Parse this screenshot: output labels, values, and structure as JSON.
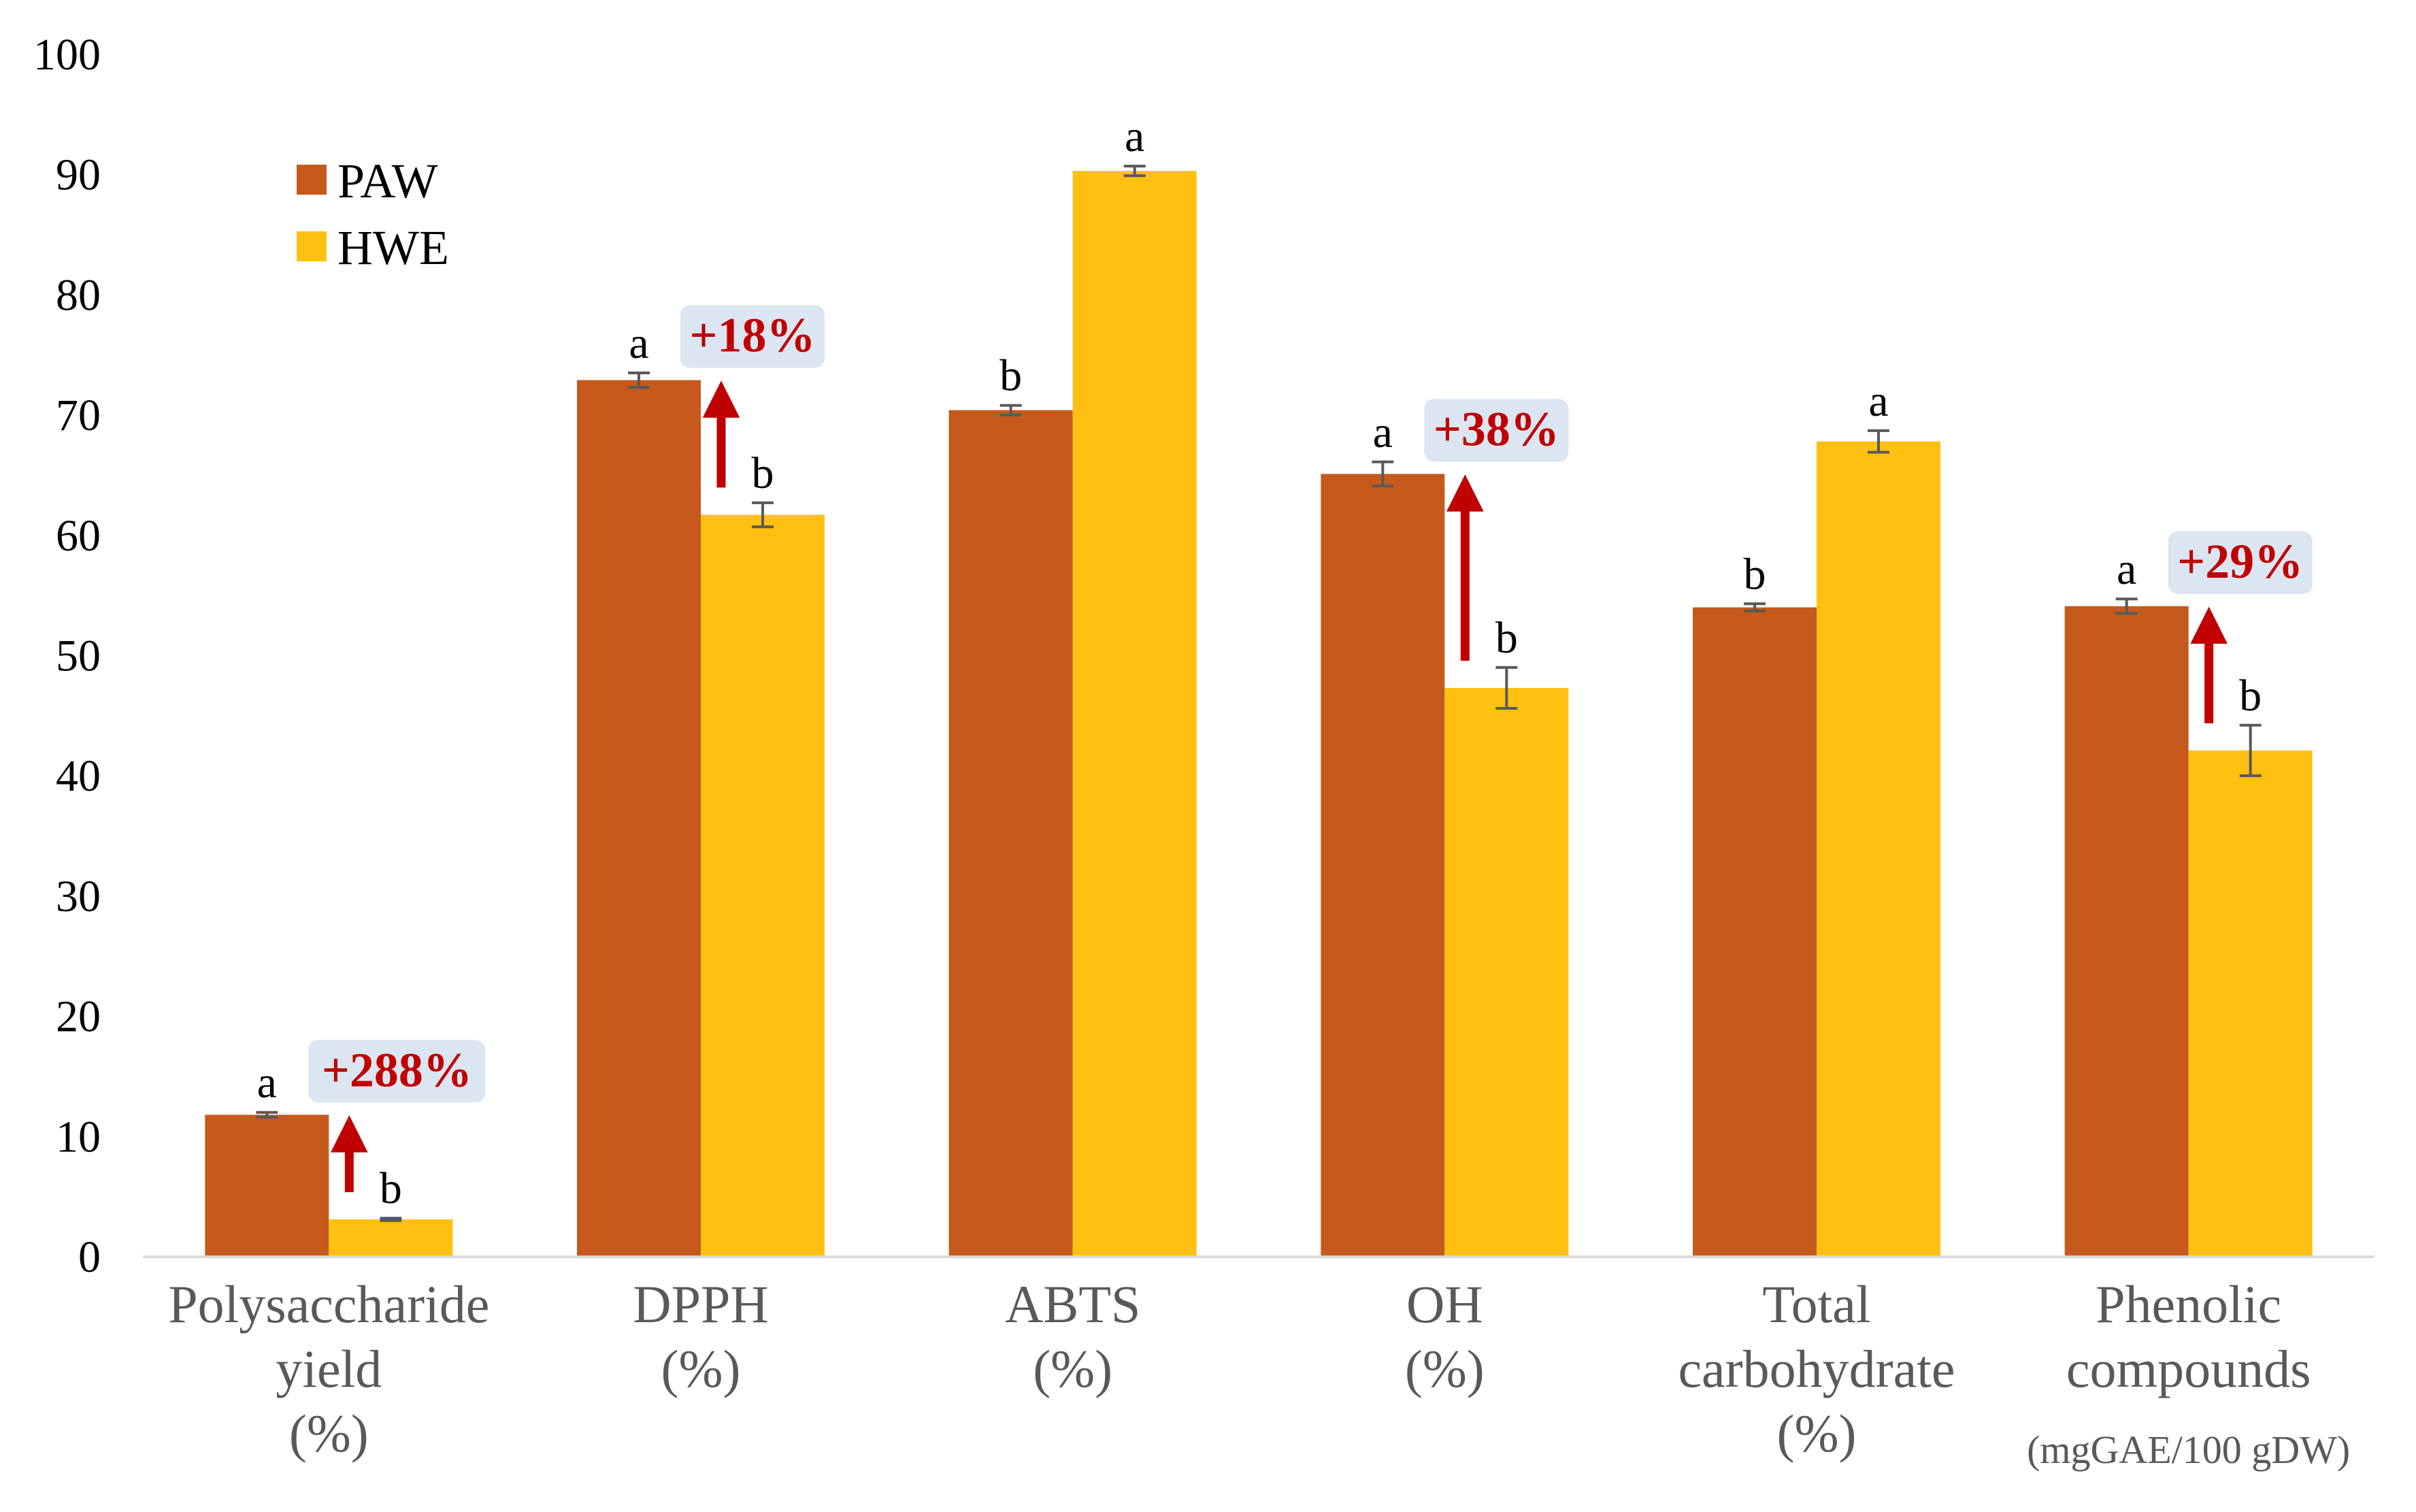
{
  "chart_data": {
    "type": "bar",
    "title": "",
    "xlabel": "",
    "ylabel": "",
    "ylim": [
      0,
      100
    ],
    "yticks": [
      0,
      10,
      20,
      30,
      40,
      50,
      60,
      70,
      80,
      90,
      100
    ],
    "grid": false,
    "legend_position": "top-left",
    "categories": [
      {
        "lines": [
          "Polysaccharide",
          "yield",
          "(%)"
        ]
      },
      {
        "lines": [
          "DPPH",
          "(%)"
        ]
      },
      {
        "lines": [
          "ABTS",
          "(%)"
        ]
      },
      {
        "lines": [
          "OH",
          "(%)"
        ]
      },
      {
        "lines": [
          "Total",
          "carbohydrate",
          "(%)"
        ]
      },
      {
        "lines": [
          "Phenolic",
          "compounds",
          "(mgGAE/100 gDW)"
        ]
      }
    ],
    "series": [
      {
        "name": "PAW",
        "color": "#c55a1c",
        "values": [
          11.7,
          72.8,
          70.3,
          65.0,
          53.9,
          54.0
        ],
        "errors": [
          0.2,
          0.6,
          0.4,
          1.0,
          0.3,
          0.6
        ],
        "letters": [
          "a",
          "a",
          "b",
          "a",
          "b",
          "a"
        ]
      },
      {
        "name": "HWE",
        "color": "#ffc012",
        "values": [
          3.0,
          61.6,
          90.2,
          47.2,
          67.7,
          42.0
        ],
        "errors": [
          0.1,
          1.0,
          0.4,
          1.7,
          0.9,
          2.1
        ],
        "letters": [
          "b",
          "b",
          "a",
          "b",
          "a",
          "b"
        ]
      }
    ],
    "annotations": [
      {
        "category_index": 0,
        "text": "+288%"
      },
      {
        "category_index": 1,
        "text": "+18%"
      },
      {
        "category_index": 3,
        "text": "+38%"
      },
      {
        "category_index": 5,
        "text": "+29%"
      }
    ],
    "annotation_color": "#c00000",
    "annotation_bg": "#dce6f2",
    "error_bar_color": "#595959",
    "axis_color": "#d9d9d9"
  }
}
